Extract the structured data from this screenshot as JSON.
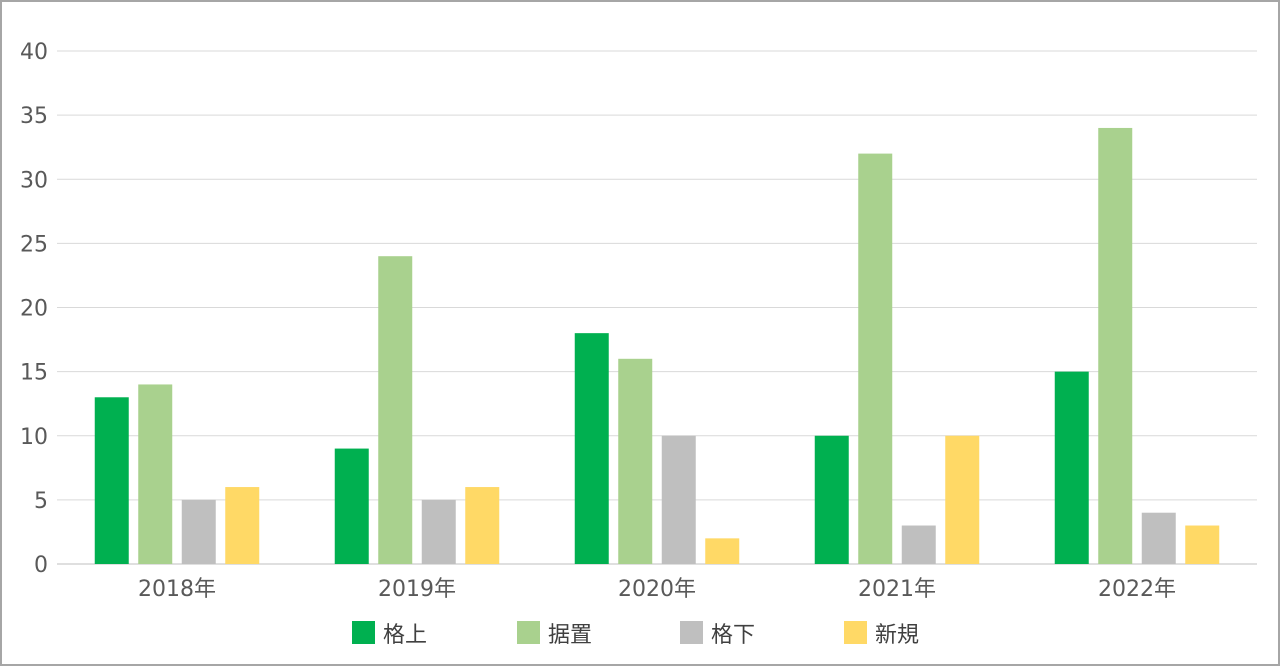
{
  "chart_data": {
    "type": "bar",
    "categories": [
      "2018年",
      "2019年",
      "2020年",
      "2021年",
      "2022年"
    ],
    "series": [
      {
        "name": "格上",
        "color": "#00b050",
        "values": [
          13,
          9,
          18,
          10,
          15
        ]
      },
      {
        "name": "据置",
        "color": "#a9d18e",
        "values": [
          14,
          24,
          16,
          32,
          34
        ]
      },
      {
        "name": "格下",
        "color": "#bfbfbf",
        "values": [
          5,
          5,
          10,
          3,
          4
        ]
      },
      {
        "name": "新規",
        "color": "#ffd966",
        "values": [
          6,
          6,
          2,
          10,
          3
        ]
      }
    ],
    "ylim": [
      0,
      40
    ],
    "yticks": [
      0,
      5,
      10,
      15,
      20,
      25,
      30,
      35,
      40
    ],
    "grid": true,
    "legend_position": "bottom"
  }
}
